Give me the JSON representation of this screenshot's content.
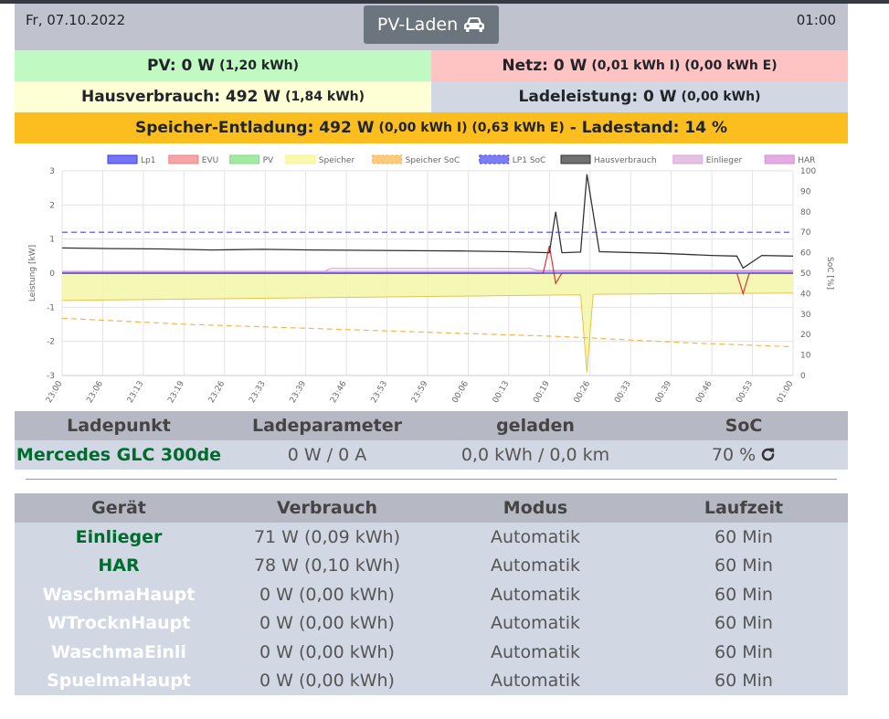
{
  "header": {
    "date": "Fr, 07.10.2022",
    "time": "01:00",
    "mode_label": "PV-Laden",
    "mode_icon": "car-icon"
  },
  "summary": {
    "pv": {
      "label": "PV: 0 W",
      "detail": "(1,20 kWh)"
    },
    "netz": {
      "label": "Netz: 0 W",
      "detail": "(0,01 kWh I) (0,00 kWh E)"
    },
    "hausverbrauch": {
      "label": "Hausverbrauch: 492 W",
      "detail": "(1,84 kWh)"
    },
    "ladeleistung": {
      "label": "Ladeleistung: 0 W",
      "detail": "(0,00 kWh)"
    },
    "speicher": {
      "label": "Speicher-Entladung: 492 W",
      "detail": "(0,00 kWh I) (0,63 kWh E)",
      "soc_label": "- Ladestand: 14 %"
    }
  },
  "chart_data": {
    "type": "line",
    "legend_position": "top",
    "legend": [
      {
        "name": "Lp1",
        "color": "#3a3af0",
        "dashed": false
      },
      {
        "name": "EVU",
        "color": "#f08080",
        "dashed": false
      },
      {
        "name": "PV",
        "color": "#7ee07e",
        "dashed": false
      },
      {
        "name": "Speicher",
        "color": "#f5f58c",
        "dashed": false
      },
      {
        "name": "Speicher SoC",
        "color": "#fbb347",
        "dashed": true
      },
      {
        "name": "LP1 SoC",
        "color": "#4646f0",
        "dashed": true
      },
      {
        "name": "Hausverbrauch",
        "color": "#333333",
        "dashed": false
      },
      {
        "name": "Einlieger",
        "color": "#d7a8d7",
        "dashed": false
      },
      {
        "name": "HAR",
        "color": "#d78ad7",
        "dashed": false
      }
    ],
    "ylabel_left": "Leistung [kW]",
    "ylabel_right": "SoC [%]",
    "y_left_range": [
      -3,
      3
    ],
    "y_left_ticks": [
      "3",
      "2",
      "1",
      "0",
      "-1",
      "-2",
      "-3"
    ],
    "y_right_range": [
      0,
      100
    ],
    "y_right_ticks": [
      "100",
      "90",
      "80",
      "70",
      "60",
      "50",
      "40",
      "30",
      "20",
      "10",
      "0"
    ],
    "x_ticks": [
      "23:00",
      "23:06",
      "23:13",
      "23:19",
      "23:26",
      "23:33",
      "23:39",
      "23:46",
      "23:53",
      "23:59",
      "00:06",
      "00:13",
      "00:19",
      "00:26",
      "00:33",
      "00:39",
      "00:46",
      "00:53",
      "01:00"
    ],
    "x_minutes": [
      0,
      6.5,
      13,
      19.5,
      26,
      32.5,
      39,
      45.5,
      52,
      58.5,
      65,
      71.5,
      78,
      84.5,
      91,
      97.5,
      104,
      110.5,
      117
    ],
    "grid": true,
    "series": [
      {
        "name": "Hausverbrauch",
        "axis": "left",
        "x": [
          0,
          8,
          16,
          24,
          32,
          40,
          48,
          56,
          64,
          72,
          78,
          79,
          80,
          83,
          84,
          86,
          96,
          104,
          108,
          109,
          112,
          117
        ],
        "y": [
          0.74,
          0.72,
          0.71,
          0.68,
          0.7,
          0.68,
          0.67,
          0.66,
          0.65,
          0.63,
          0.6,
          1.8,
          0.6,
          0.62,
          2.9,
          0.63,
          0.58,
          0.52,
          0.5,
          0.15,
          0.52,
          0.5
        ]
      },
      {
        "name": "Speicher",
        "axis": "left",
        "x": [
          0,
          20,
          40,
          60,
          80,
          83,
          84,
          85,
          100,
          117
        ],
        "y": [
          -0.8,
          -0.76,
          -0.72,
          -0.68,
          -0.64,
          -0.64,
          -2.9,
          -0.62,
          -0.6,
          -0.58
        ]
      },
      {
        "name": "Speicher SoC",
        "axis": "right",
        "x": [
          0,
          20,
          40,
          60,
          80,
          100,
          117
        ],
        "y": [
          28,
          25,
          23,
          21,
          19,
          16,
          14
        ]
      },
      {
        "name": "LP1 SoC",
        "axis": "right",
        "x": [
          0,
          117
        ],
        "y": [
          70,
          70
        ]
      },
      {
        "name": "Einlieger",
        "axis": "left",
        "x": [
          0,
          42,
          43,
          75,
          76,
          117
        ],
        "y": [
          0.05,
          0.05,
          0.14,
          0.14,
          0.08,
          0.08
        ]
      },
      {
        "name": "HAR",
        "axis": "left",
        "x": [
          0,
          117
        ],
        "y": [
          0.05,
          0.05
        ]
      },
      {
        "name": "EVU",
        "axis": "left",
        "x": [
          0,
          77,
          78,
          79,
          80,
          108,
          109,
          110,
          117
        ],
        "y": [
          0,
          0,
          0.8,
          -0.3,
          0,
          0,
          -0.6,
          0,
          0
        ]
      },
      {
        "name": "Lp1",
        "axis": "left",
        "x": [
          0,
          117
        ],
        "y": [
          0,
          0
        ]
      }
    ]
  },
  "ladepunkt_table": {
    "headers": [
      "Ladepunkt",
      "Ladeparameter",
      "geladen",
      "SoC"
    ],
    "rows": [
      {
        "name": "Mercedes GLC 300de",
        "parameter": "0 W / 0 A",
        "geladen": "0,0 kWh / 0,0 km",
        "soc": "70 %",
        "soc_icon": "refresh-icon"
      }
    ]
  },
  "geraete_table": {
    "headers": [
      "Gerät",
      "Verbrauch",
      "Modus",
      "Laufzeit"
    ],
    "rows": [
      {
        "name": "Einlieger",
        "verbrauch": "71 W (0,09 kWh)",
        "modus": "Automatik",
        "laufzeit": "60 Min",
        "active": true
      },
      {
        "name": "HAR",
        "verbrauch": "78 W (0,10 kWh)",
        "modus": "Automatik",
        "laufzeit": "60 Min",
        "active": true
      },
      {
        "name": "WaschmaHaupt",
        "verbrauch": "0 W (0,00 kWh)",
        "modus": "Automatik",
        "laufzeit": "60 Min",
        "active": false
      },
      {
        "name": "WTrocknHaupt",
        "verbrauch": "0 W (0,00 kWh)",
        "modus": "Automatik",
        "laufzeit": "60 Min",
        "active": false
      },
      {
        "name": "WaschmaEinli",
        "verbrauch": "0 W (0,00 kWh)",
        "modus": "Automatik",
        "laufzeit": "60 Min",
        "active": false
      },
      {
        "name": "SpuelmaHaupt",
        "verbrauch": "0 W (0,00 kWh)",
        "modus": "Automatik",
        "laufzeit": "60 Min",
        "active": false
      }
    ]
  }
}
